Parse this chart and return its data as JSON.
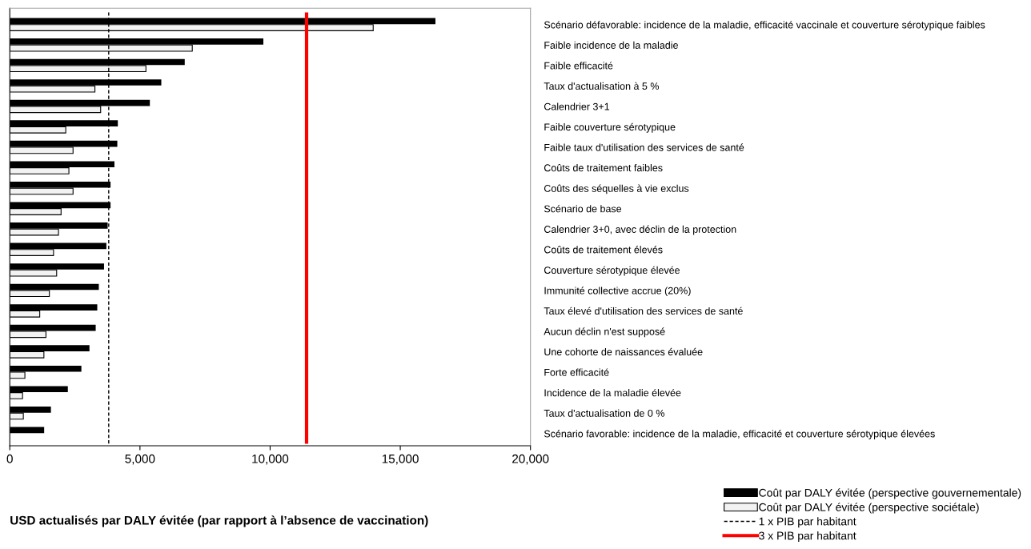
{
  "chart_data": {
    "type": "bar",
    "orientation": "horizontal",
    "categories": [
      "Scénario défavorable: incidence de la maladie, efficacité vaccinale et couverture sérotypique faibles",
      "Faible incidence de la maladie",
      "Faible efficacité",
      "Taux d'actualisation à 5 %",
      "Calendrier 3+1",
      "Faible couverture sérotypique",
      "Faible taux d'utilisation des services de santé",
      "Coûts de traitement faibles",
      "Coûts des séquelles à vie exclus",
      "Scénario de base",
      "Calendrier 3+0, avec déclin de la protection",
      "Coûts de traitement élevés",
      "Couverture sérotypique élevée",
      "Immunité collective accrue (20%)",
      "Taux élevé d'utilisation des services de santé",
      "Aucun déclin n'est supposé",
      "Une cohorte de naissances évaluée",
      "Forte efficacité",
      "Incidence de la maladie élevée",
      "Taux d'actualisation de 0 %",
      "Scénario favorable: incidence de la maladie, efficacité et couverture sérotypique élevées"
    ],
    "series": [
      {
        "name": "Coût par DALY évitée (perspective gouvernementale)",
        "color": "#000000",
        "values": [
          16350,
          9740,
          6720,
          5820,
          5380,
          4150,
          4130,
          4020,
          3870,
          3870,
          3760,
          3710,
          3620,
          3420,
          3360,
          3300,
          3060,
          2750,
          2230,
          1580,
          1320
        ]
      },
      {
        "name": "Coût par DALY évitée (perspective sociétale)",
        "color": "#f2f2f2",
        "values": [
          13960,
          7010,
          5230,
          3270,
          3490,
          2150,
          2430,
          2270,
          2430,
          1970,
          1870,
          1680,
          1800,
          1520,
          1150,
          1390,
          1310,
          580,
          490,
          520,
          null
        ]
      }
    ],
    "xlabel": "USD actualisés par DALY évitée (par rapport à l’absence de vaccination)",
    "xlim": [
      0,
      20000
    ],
    "xticks": [
      {
        "value": 0,
        "label": "0"
      },
      {
        "value": 5000,
        "label": "5,000"
      },
      {
        "value": 10000,
        "label": "10,000"
      },
      {
        "value": 15000,
        "label": "15,000"
      },
      {
        "value": 20000,
        "label": "20,000"
      }
    ],
    "ref_lines": [
      {
        "axis": "x",
        "value": 3800,
        "label": "1 x PIB par habitant",
        "color": "#000000",
        "line_style": "dashed"
      },
      {
        "axis": "x",
        "value": 11400,
        "label": "3 x PIB par habitant",
        "color": "#ff0000",
        "line_style": "solid"
      }
    ],
    "legend": "bottom right",
    "grid": false
  }
}
